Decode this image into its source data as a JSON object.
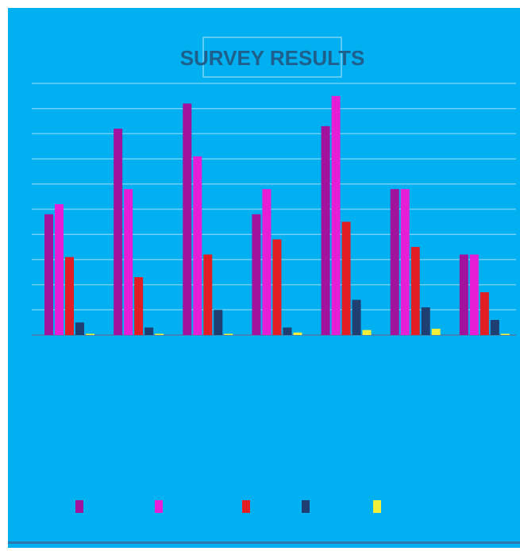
{
  "chart_data": {
    "type": "bar",
    "title": "SURVEY RESULTS",
    "categories": [
      "",
      "",
      "",
      "",
      "",
      "",
      ""
    ],
    "ylim": [
      0,
      10
    ],
    "grid": true,
    "legend_position": "bottom",
    "series": [
      {
        "values": [
          4.8,
          8.2,
          9.2,
          4.8,
          8.3,
          5.8,
          3.2
        ],
        "color": "#a2139d"
      },
      {
        "values": [
          5.2,
          5.8,
          7.1,
          5.8,
          9.5,
          5.8,
          3.2
        ],
        "color": "#e61fd6"
      },
      {
        "values": [
          3.1,
          2.3,
          3.2,
          3.8,
          4.5,
          3.5,
          1.7
        ],
        "color": "#e01e24"
      },
      {
        "values": [
          0.5,
          0.3,
          1.0,
          0.3,
          1.4,
          1.1,
          0.6
        ],
        "color": "#1f3f73"
      },
      {
        "values": [
          0.05,
          0.05,
          0.05,
          0.1,
          0.2,
          0.25,
          0.05
        ],
        "color": "#f2ef3a"
      }
    ]
  }
}
